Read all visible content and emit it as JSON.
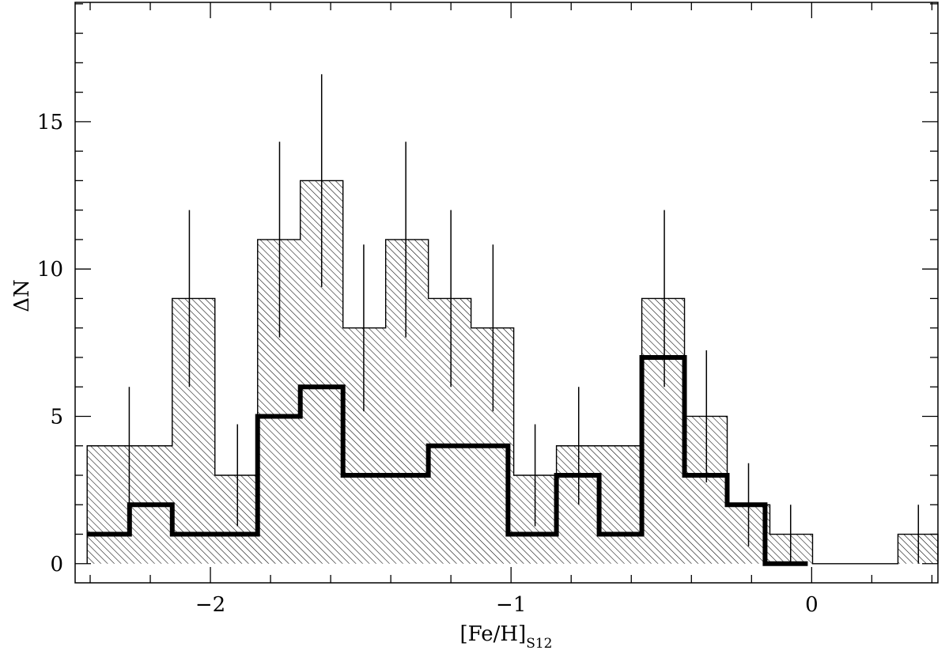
{
  "chart_data": {
    "type": "bar",
    "subtype": "step-histogram",
    "xlabel_main": "[Fe/H]",
    "xlabel_sub": "S12",
    "ylabel": "ΔN",
    "xlim": [
      -2.45,
      0.42
    ],
    "ylim": [
      -0.65,
      19.05
    ],
    "x_ticks": [
      -2,
      -1,
      0
    ],
    "x_tick_labels": [
      "−2",
      "−1",
      "0"
    ],
    "x_minor_step": 0.2,
    "y_ticks": [
      0,
      5,
      10,
      15
    ],
    "y_tick_labels": [
      "0",
      "5",
      "10",
      "15"
    ],
    "y_minor_step": 1,
    "grid": false,
    "legend": "none",
    "series": [
      {
        "style": "hatched-histogram",
        "bins": [
          {
            "x0": -2.41,
            "x1": -2.127,
            "y": 4,
            "err_x": -2.27,
            "err_lo": 2,
            "err_hi": 6
          },
          {
            "x0": -2.127,
            "x1": -1.985,
            "y": 9,
            "err_x": -2.07,
            "err_lo": 6,
            "err_hi": 12
          },
          {
            "x0": -1.985,
            "x1": -1.843,
            "y": 3,
            "err_x": -1.91,
            "err_lo": 1.27,
            "err_hi": 4.73
          },
          {
            "x0": -1.843,
            "x1": -1.701,
            "y": 11,
            "err_x": -1.77,
            "err_lo": 7.68,
            "err_hi": 14.32
          },
          {
            "x0": -1.701,
            "x1": -1.559,
            "y": 13,
            "err_x": -1.63,
            "err_lo": 9.39,
            "err_hi": 16.61
          },
          {
            "x0": -1.559,
            "x1": -1.417,
            "y": 8,
            "err_x": -1.49,
            "err_lo": 5.17,
            "err_hi": 10.83
          },
          {
            "x0": -1.417,
            "x1": -1.275,
            "y": 11,
            "err_x": -1.35,
            "err_lo": 7.68,
            "err_hi": 14.32
          },
          {
            "x0": -1.275,
            "x1": -1.133,
            "y": 9,
            "err_x": -1.2,
            "err_lo": 6,
            "err_hi": 12
          },
          {
            "x0": -1.133,
            "x1": -0.991,
            "y": 8,
            "err_x": -1.06,
            "err_lo": 5.17,
            "err_hi": 10.83
          },
          {
            "x0": -0.991,
            "x1": -0.849,
            "y": 3,
            "err_x": -0.92,
            "err_lo": 1.27,
            "err_hi": 4.73
          },
          {
            "x0": -0.849,
            "x1": -0.565,
            "y": 4,
            "err_x": -0.775,
            "err_lo": 2,
            "err_hi": 6
          },
          {
            "x0": -0.565,
            "x1": -0.423,
            "y": 9,
            "err_x": -0.49,
            "err_lo": 6,
            "err_hi": 12
          },
          {
            "x0": -0.423,
            "x1": -0.281,
            "y": 5,
            "err_x": -0.35,
            "err_lo": 2.76,
            "err_hi": 7.24
          },
          {
            "x0": -0.281,
            "x1": -0.139,
            "y": 2,
            "err_x": -0.21,
            "err_lo": 0.59,
            "err_hi": 3.41
          },
          {
            "x0": -0.139,
            "x1": 0.003,
            "y": 1,
            "err_x": -0.07,
            "err_lo": 0,
            "err_hi": 2
          },
          {
            "x0": 0.003,
            "x1": 0.287,
            "y": 0
          },
          {
            "x0": 0.287,
            "x1": 0.42,
            "y": 1,
            "err_x": 0.355,
            "err_lo": 0,
            "err_hi": 2
          }
        ]
      },
      {
        "style": "thick-step",
        "bins": [
          {
            "x0": -2.41,
            "x1": -2.269,
            "y": 1
          },
          {
            "x0": -2.269,
            "x1": -2.127,
            "y": 2
          },
          {
            "x0": -2.127,
            "x1": -1.843,
            "y": 1
          },
          {
            "x0": -1.843,
            "x1": -1.701,
            "y": 5
          },
          {
            "x0": -1.701,
            "x1": -1.559,
            "y": 6
          },
          {
            "x0": -1.559,
            "x1": -1.275,
            "y": 3
          },
          {
            "x0": -1.275,
            "x1": -1.01,
            "y": 4
          },
          {
            "x0": -1.01,
            "x1": -0.849,
            "y": 1
          },
          {
            "x0": -0.849,
            "x1": -0.707,
            "y": 3
          },
          {
            "x0": -0.707,
            "x1": -0.565,
            "y": 1
          },
          {
            "x0": -0.565,
            "x1": -0.423,
            "y": 7
          },
          {
            "x0": -0.423,
            "x1": -0.281,
            "y": 3
          },
          {
            "x0": -0.281,
            "x1": -0.155,
            "y": 2
          },
          {
            "x0": -0.155,
            "x1": -0.013,
            "y": 0
          }
        ]
      }
    ]
  }
}
